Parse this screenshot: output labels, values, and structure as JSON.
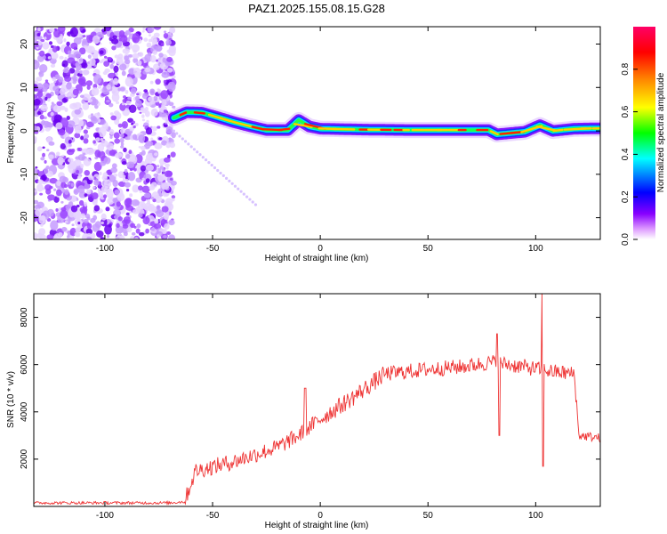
{
  "title": "PAZ1.2025.155.08.15.G28",
  "chart_data": [
    {
      "type": "heatmap",
      "title": "PAZ1.2025.155.08.15.G28",
      "xlabel": "Height of straight line (km)",
      "ylabel": "Frequency (Hz)",
      "xlim": [
        -133,
        130
      ],
      "ylim": [
        -25,
        24
      ],
      "xticks": [
        -100,
        -50,
        0,
        50,
        100
      ],
      "yticks": [
        -20,
        -10,
        0,
        10,
        20
      ],
      "colorbar": {
        "label": "Normalized spectral amplitude",
        "range": [
          0,
          1
        ],
        "ticks": [
          "0.0",
          "0.2",
          "0.4",
          "0.6",
          "0.8"
        ],
        "colors": [
          "#ffffff",
          "#cc88ff",
          "#6600ff",
          "#0000ff",
          "#00ffff",
          "#00ff00",
          "#ffff00",
          "#ff8800",
          "#ff0000",
          "#ff0066"
        ]
      },
      "noise_region_x": [
        -133,
        -68
      ],
      "ridge": [
        {
          "x": -68,
          "f": 3.0
        },
        {
          "x": -62,
          "f": 4.3
        },
        {
          "x": -55,
          "f": 4.2
        },
        {
          "x": -48,
          "f": 3.2
        },
        {
          "x": -40,
          "f": 2.0
        },
        {
          "x": -32,
          "f": 1.0
        },
        {
          "x": -25,
          "f": 0.2
        },
        {
          "x": -15,
          "f": 0.2
        },
        {
          "x": -10,
          "f": 2.5
        },
        {
          "x": -5,
          "f": 1.0
        },
        {
          "x": 0,
          "f": 0.5
        },
        {
          "x": 10,
          "f": 0.4
        },
        {
          "x": 20,
          "f": 0.3
        },
        {
          "x": 40,
          "f": 0.2
        },
        {
          "x": 60,
          "f": 0.2
        },
        {
          "x": 78,
          "f": 0.2
        },
        {
          "x": 82,
          "f": -0.8
        },
        {
          "x": 95,
          "f": -0.2
        },
        {
          "x": 102,
          "f": 1.3
        },
        {
          "x": 108,
          "f": 0.0
        },
        {
          "x": 118,
          "f": 0.5
        },
        {
          "x": 130,
          "f": 0.6
        }
      ],
      "faint_trace": [
        {
          "x": -68,
          "f": 0.0
        },
        {
          "x": -30,
          "f": -17.0
        }
      ]
    },
    {
      "type": "line",
      "xlabel": "Height of straight line (km)",
      "ylabel": "SNR (10 * v/v)",
      "xlim": [
        -133,
        130
      ],
      "ylim": [
        0,
        9000
      ],
      "xticks": [
        -100,
        -50,
        0,
        50,
        100
      ],
      "yticks": [
        2000,
        4000,
        6000,
        8000
      ],
      "color": "#ee3333",
      "trend": [
        {
          "x": -133,
          "y": 150
        },
        {
          "x": -70,
          "y": 150
        },
        {
          "x": -63,
          "y": 200
        },
        {
          "x": -58,
          "y": 1500
        },
        {
          "x": -40,
          "y": 1900
        },
        {
          "x": -20,
          "y": 2500
        },
        {
          "x": -10,
          "y": 3000
        },
        {
          "x": 0,
          "y": 3700
        },
        {
          "x": 15,
          "y": 4600
        },
        {
          "x": 30,
          "y": 5600
        },
        {
          "x": 50,
          "y": 5800
        },
        {
          "x": 65,
          "y": 5900
        },
        {
          "x": 80,
          "y": 6100
        },
        {
          "x": 95,
          "y": 5900
        },
        {
          "x": 108,
          "y": 5700
        },
        {
          "x": 118,
          "y": 5600
        },
        {
          "x": 120,
          "y": 3000
        },
        {
          "x": 130,
          "y": 2900
        }
      ],
      "spikes": [
        {
          "x": -7,
          "y": 5000
        },
        {
          "x": 82,
          "y": 7300
        },
        {
          "x": 83,
          "y": 3000
        },
        {
          "x": 103,
          "y": 9000
        },
        {
          "x": 103.5,
          "y": 1700
        }
      ]
    }
  ]
}
